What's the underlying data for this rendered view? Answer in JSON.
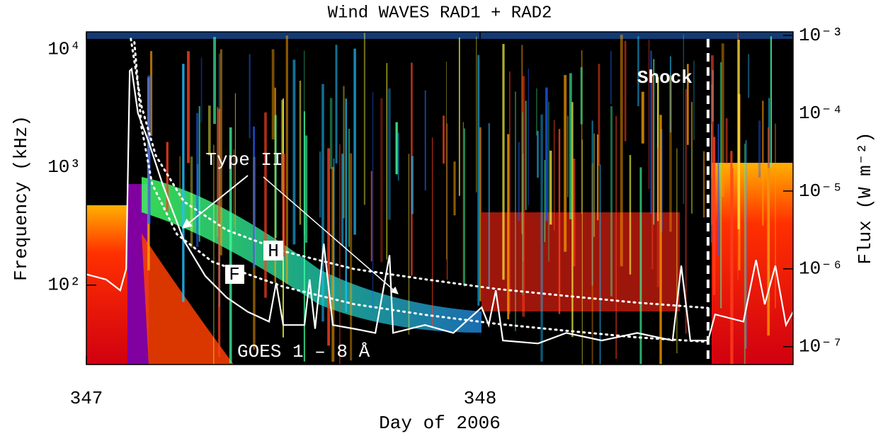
{
  "chart_data": {
    "type": "line",
    "title": "Wind WAVES RAD1 + RAD2",
    "x_label": "Day of 2006",
    "y_label": "Frequency (kHz)",
    "y2_label": "Flux (W m⁻²)",
    "xlim": [
      347,
      348.795
    ],
    "xticks": [
      347,
      348
    ],
    "ylim": [
      21.2,
      14100
    ],
    "yticks": [
      {
        "value": 100,
        "label": "10²"
      },
      {
        "value": 1000,
        "label": "10³"
      },
      {
        "value": 10000,
        "label": "10⁴"
      }
    ],
    "y_log": true,
    "y2lim": [
      5.9e-08,
      0.00111
    ],
    "y2ticks": [
      {
        "value": 1e-07,
        "label": "10⁻⁷"
      },
      {
        "value": 1e-06,
        "label": "10⁻⁶"
      },
      {
        "value": 1e-05,
        "label": "10⁻⁵"
      },
      {
        "value": 0.0001,
        "label": "10⁻⁴"
      },
      {
        "value": 0.001,
        "label": "10⁻³"
      }
    ],
    "y2_log": true,
    "series": [
      {
        "name": "GOES 1 – 8 Å",
        "color": "#ffffff",
        "axis": "y2",
        "line_style": "solid",
        "x": [
          347.0,
          347.05,
          347.086,
          347.101,
          347.11,
          347.115,
          347.131,
          347.158,
          347.194,
          347.248,
          347.302,
          347.356,
          347.41,
          347.464,
          347.482,
          347.5,
          347.554,
          347.567,
          347.581,
          347.603,
          347.626,
          347.68,
          347.734,
          347.77,
          347.779,
          347.86,
          347.932,
          348.004,
          348.022,
          348.04,
          348.058,
          348.147,
          348.219,
          348.309,
          348.399,
          348.489,
          348.511,
          348.534,
          348.579,
          348.597,
          348.669,
          348.701,
          348.723,
          348.75,
          348.777,
          348.795
        ],
        "values": [
          8.5e-07,
          7.3e-07,
          5.3e-07,
          1e-06,
          0.00035,
          0.00037,
          0.0001,
          4.3e-05,
          1.2e-05,
          2.3e-06,
          8.1e-07,
          4.3e-07,
          2.8e-07,
          2.1e-07,
          6.6e-07,
          1.9e-07,
          1.9e-07,
          7.3e-07,
          1.7e-07,
          2.1e-06,
          1.9e-07,
          1.7e-07,
          1.5e-07,
          1.5e-06,
          1.5e-07,
          1.9e-07,
          1.5e-07,
          3.2e-07,
          1.9e-07,
          5.3e-07,
          1.2e-07,
          1.1e-07,
          1.5e-07,
          1.2e-07,
          1.5e-07,
          1.2e-07,
          1.1e-06,
          1.2e-07,
          1.2e-07,
          2.6e-07,
          2.1e-07,
          1.3e-06,
          3.5e-07,
          1.1e-06,
          1.9e-07,
          2.8e-07
        ]
      },
      {
        "name": "H",
        "color": "#ffffff",
        "axis": "y",
        "line_style": "dotted",
        "x": [
          347.113,
          347.14,
          347.176,
          347.248,
          347.356,
          347.5,
          347.68,
          347.86,
          348.04,
          348.219,
          348.399,
          348.579
        ],
        "values": [
          12300,
          3300,
          1260,
          510,
          294,
          194,
          137,
          112,
          93,
          81,
          71,
          64
        ]
      },
      {
        "name": "F",
        "color": "#ffffff",
        "axis": "y",
        "line_style": "dotted",
        "x": [
          347.122,
          347.14,
          347.167,
          347.23,
          347.32,
          347.5,
          347.68,
          347.86,
          348.04,
          348.219,
          348.399,
          348.579
        ],
        "values": [
          11500,
          2200,
          720,
          270,
          158,
          97,
          69,
          56,
          47,
          41,
          36,
          33
        ]
      }
    ],
    "annotations": {
      "type_ii": "Type II"
    },
    "shock": {
      "label": "Shock",
      "x": 348.579,
      "line_style": "dashed",
      "color": "#ffffff"
    }
  }
}
